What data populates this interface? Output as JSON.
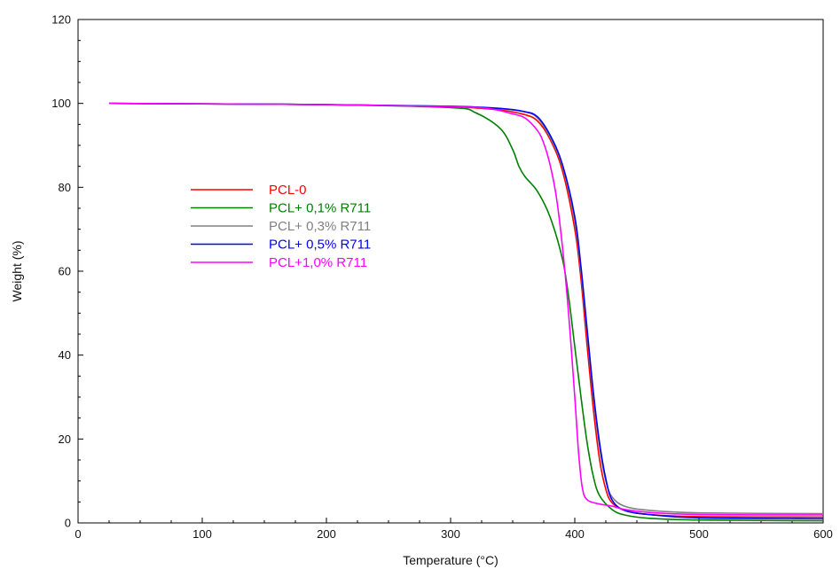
{
  "chart_data": {
    "type": "line",
    "title": "",
    "xlabel": "Temperature (°C)",
    "ylabel": "Weight (%)",
    "xlim": [
      0,
      600
    ],
    "ylim": [
      0,
      120
    ],
    "x_ticks": [
      0,
      100,
      200,
      300,
      400,
      500,
      600
    ],
    "y_ticks": [
      0,
      20,
      40,
      60,
      80,
      100,
      120
    ],
    "grid": false,
    "legend_position": "left-middle",
    "series": [
      {
        "name": "PCL-0",
        "color": "#ff0000",
        "x": [
          25,
          100,
          200,
          300,
          340,
          360,
          370,
          380,
          390,
          400,
          405,
          410,
          415,
          420,
          425,
          430,
          440,
          460,
          500,
          600
        ],
        "y": [
          100,
          99.9,
          99.7,
          99.2,
          98.4,
          97.3,
          95.8,
          91.5,
          84,
          70,
          58,
          42,
          27,
          15,
          8,
          4.8,
          3,
          2,
          1.5,
          1.4
        ]
      },
      {
        "name": "PCL+ 0,1% R711",
        "color": "#008000",
        "x": [
          25,
          100,
          200,
          300,
          320,
          340,
          350,
          355,
          360,
          370,
          380,
          390,
          395,
          400,
          405,
          410,
          415,
          420,
          430,
          440,
          460,
          500,
          600
        ],
        "y": [
          100,
          99.9,
          99.7,
          99,
          97.8,
          94,
          89,
          85,
          82.5,
          79,
          73,
          63,
          54,
          42,
          30,
          19,
          11,
          6.5,
          3.2,
          1.9,
          1.1,
          0.7,
          0.5
        ]
      },
      {
        "name": "PCL+ 0,3% R711",
        "color": "#808080",
        "x": [
          25,
          100,
          200,
          300,
          340,
          360,
          370,
          380,
          390,
          400,
          405,
          410,
          415,
          420,
          425,
          430,
          440,
          460,
          500,
          600
        ],
        "y": [
          100,
          99.9,
          99.7,
          99.3,
          98.7,
          98,
          96.5,
          92,
          85,
          72,
          60,
          45,
          30,
          18,
          10,
          6.2,
          4,
          3,
          2.4,
          2.2
        ]
      },
      {
        "name": "PCL+ 0,5% R711",
        "color": "#0000ff",
        "x": [
          25,
          100,
          200,
          300,
          340,
          360,
          370,
          380,
          390,
          400,
          405,
          410,
          415,
          420,
          425,
          430,
          440,
          460,
          500,
          600
        ],
        "y": [
          100,
          99.9,
          99.7,
          99.3,
          98.8,
          98,
          96.8,
          92.5,
          85.5,
          73,
          61,
          46,
          31,
          19,
          10.5,
          5.5,
          3,
          2,
          1.2,
          1
        ]
      },
      {
        "name": "PCL+1,0% R711",
        "color": "#ff00ff",
        "x": [
          25,
          100,
          200,
          300,
          330,
          350,
          360,
          370,
          375,
          380,
          385,
          390,
          395,
          400,
          403,
          406,
          410,
          420,
          430,
          440,
          460,
          500,
          600
        ],
        "y": [
          100,
          99.9,
          99.7,
          99.2,
          98.8,
          97.5,
          96.5,
          93.5,
          90.5,
          85.5,
          78,
          66,
          50,
          30,
          17,
          8.5,
          5.5,
          4.5,
          4,
          3.2,
          2.5,
          2,
          1.9
        ]
      }
    ]
  }
}
